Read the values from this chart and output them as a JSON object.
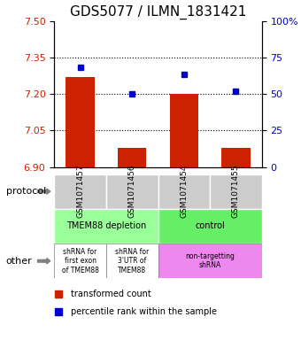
{
  "title": "GDS5077 / ILMN_1831421",
  "samples": [
    "GSM1071457",
    "GSM1071456",
    "GSM1071454",
    "GSM1071455"
  ],
  "bar_values": [
    7.27,
    6.98,
    7.2,
    6.98
  ],
  "percentile_values": [
    7.31,
    7.2,
    7.28,
    7.21
  ],
  "ylim_left": [
    6.9,
    7.5
  ],
  "ylim_right": [
    0,
    100
  ],
  "yticks_left": [
    6.9,
    7.05,
    7.2,
    7.35,
    7.5
  ],
  "yticks_right": [
    0,
    25,
    50,
    75,
    100
  ],
  "ytick_labels_right": [
    "0",
    "25",
    "50",
    "75",
    "100%"
  ],
  "hlines": [
    7.35,
    7.2,
    7.05
  ],
  "bar_color": "#cc2200",
  "percentile_color": "#0000cc",
  "bar_bottom": 6.9,
  "protocol_groups": [
    {
      "cols": [
        0,
        1
      ],
      "label": "TMEM88 depletion",
      "color": "#99ff99"
    },
    {
      "cols": [
        2,
        3
      ],
      "label": "control",
      "color": "#66ee66"
    }
  ],
  "other_groups": [
    {
      "cols": [
        0
      ],
      "label": "shRNA for\nfirst exon\nof TMEM88",
      "color": "#ffffff"
    },
    {
      "cols": [
        1
      ],
      "label": "shRNA for\n3'UTR of\nTMEM88",
      "color": "#ffffff"
    },
    {
      "cols": [
        2,
        3
      ],
      "label": "non-targetting\nshRNA",
      "color": "#ee88ee"
    }
  ],
  "row_labels": [
    "protocol",
    "other"
  ],
  "legend_items": [
    {
      "color": "#cc2200",
      "label": "transformed count"
    },
    {
      "color": "#0000cc",
      "label": "percentile rank within the sample"
    }
  ],
  "cell_bg_color": "#cccccc",
  "title_fontsize": 11,
  "axis_left_color": "#cc2200",
  "axis_right_color": "#0000cc"
}
